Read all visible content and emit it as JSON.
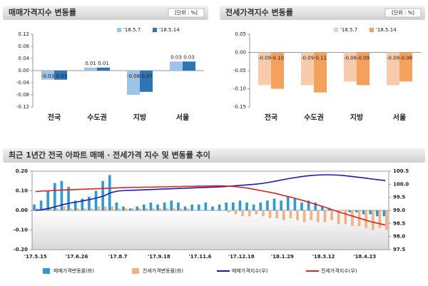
{
  "chart_data": [
    {
      "type": "bar",
      "title": "매매가격지수 변동률",
      "unit": "[단위 : %]",
      "categories": [
        "전국",
        "수도권",
        "지방",
        "서울"
      ],
      "series": [
        {
          "name": "'18.5.7",
          "color": "#9dc3e6",
          "values": [
            -0.03,
            0.01,
            -0.08,
            0.03
          ],
          "value_labels": [
            "-0.03",
            "0.01",
            "-0.08",
            "0.03"
          ]
        },
        {
          "name": "'18.5.14",
          "color": "#2e75b6",
          "values": [
            -0.03,
            0.01,
            -0.07,
            0.03
          ],
          "value_labels": [
            "-0.03",
            "0.01",
            "-0.07",
            "0.03"
          ]
        }
      ],
      "ylim": [
        -0.12,
        0.12
      ],
      "yticks": [
        0.12,
        0.08,
        0.04,
        {
          "value": 0,
          "label": "0.00"
        },
        -0.04,
        -0.08,
        -0.12
      ]
    },
    {
      "type": "bar",
      "title": "전세가격지수 변동률",
      "unit": "[단위 : %]",
      "categories": [
        "전국",
        "수도권",
        "지방",
        "서울"
      ],
      "series": [
        {
          "name": "'18.5.7",
          "color": "#f8cbad",
          "values": [
            -0.09,
            -0.09,
            -0.08,
            -0.09
          ],
          "value_labels": [
            "-0.09",
            "-0.09",
            "-0.08",
            "-0.09"
          ]
        },
        {
          "name": "'18.5.14",
          "color": "#f4a15d",
          "values": [
            -0.1,
            -0.11,
            -0.09,
            -0.08
          ],
          "value_labels": [
            "-0.10",
            "-0.11",
            "-0.09",
            "-0.08"
          ]
        }
      ],
      "ylim": [
        -0.15,
        0.05
      ],
      "yticks": [
        0.05,
        {
          "value": 0,
          "label": "0.00"
        },
        -0.05,
        {
          "value": -0.1,
          "label": "-0.10"
        },
        -0.15
      ]
    },
    {
      "type": "combo",
      "title": "최근 1년간 전국 아파트 매매 · 전세가격 지수 및 변동률 추이",
      "categories": [
        "'17.5.15",
        null,
        null,
        null,
        null,
        null,
        "'17.6.26",
        null,
        null,
        null,
        null,
        null,
        "'17.8.7",
        null,
        null,
        null,
        null,
        null,
        "'17.9.18",
        null,
        null,
        null,
        null,
        null,
        "'17.11.6",
        null,
        null,
        null,
        null,
        null,
        "'17.12.18",
        null,
        null,
        null,
        null,
        null,
        "'18.1.29",
        null,
        null,
        null,
        null,
        null,
        "'18.3.12",
        null,
        null,
        null,
        null,
        null,
        "'18.4.23",
        null,
        null,
        null
      ],
      "series": [
        {
          "name": "매매가격변동률(좌)",
          "kind": "bar",
          "color": "#2e9bd6",
          "values": [
            0.03,
            0.05,
            0.1,
            0.14,
            0.15,
            0.12,
            0.05,
            0.06,
            0.07,
            0.1,
            0.15,
            0.18,
            0.04,
            0.02,
            0.01,
            0.02,
            0.03,
            0.04,
            0.03,
            0.04,
            0.05,
            0.04,
            0.02,
            0.03,
            0.03,
            0.04,
            0.02,
            0.03,
            0.04,
            0.04,
            0.05,
            0.04,
            0.03,
            0.04,
            0.05,
            0.06,
            0.05,
            0.07,
            0.06,
            0.04,
            0.05,
            0.04,
            0.02,
            0.01,
            0.0,
            0.0,
            -0.01,
            -0.01,
            -0.02,
            -0.02,
            -0.03,
            -0.03
          ]
        },
        {
          "name": "전세가격변동률(좌)",
          "kind": "bar",
          "color": "#f4b183",
          "values": [
            0.01,
            0.01,
            0.01,
            0.01,
            0.02,
            0.01,
            0.01,
            0.01,
            0.01,
            0.02,
            0.02,
            0.02,
            0.01,
            0.01,
            0.01,
            0.01,
            0.01,
            0.01,
            0.01,
            0.01,
            0.01,
            0.01,
            0.01,
            0.0,
            0.0,
            0.0,
            0.0,
            0.0,
            -0.01,
            -0.02,
            -0.03,
            -0.03,
            -0.02,
            -0.03,
            -0.04,
            -0.04,
            -0.05,
            -0.04,
            -0.05,
            -0.06,
            -0.05,
            -0.06,
            -0.06,
            -0.05,
            -0.07,
            -0.07,
            -0.08,
            -0.08,
            -0.09,
            -0.1,
            -0.09,
            -0.1
          ]
        },
        {
          "name": "매매가격지수(우)",
          "kind": "line",
          "axis": "y2",
          "color": "#1a1ab8",
          "values": [
            99.0,
            99.03,
            99.08,
            99.15,
            99.22,
            99.28,
            99.32,
            99.37,
            99.42,
            99.48,
            99.56,
            99.68,
            99.74,
            99.76,
            99.77,
            99.78,
            99.79,
            99.8,
            99.81,
            99.82,
            99.83,
            99.84,
            99.85,
            99.86,
            99.87,
            99.88,
            99.89,
            99.9,
            99.92,
            99.94,
            99.96,
            99.98,
            100.0,
            100.03,
            100.07,
            100.12,
            100.17,
            100.22,
            100.26,
            100.3,
            100.33,
            100.35,
            100.36,
            100.36,
            100.35,
            100.33,
            100.3,
            100.27,
            100.24,
            100.2,
            100.17,
            100.14
          ]
        },
        {
          "name": "전세가격지수(우)",
          "kind": "line",
          "axis": "y2",
          "color": "#e0201c",
          "values": [
            99.72,
            99.74,
            99.75,
            99.77,
            99.78,
            99.79,
            99.8,
            99.81,
            99.82,
            99.83,
            99.84,
            99.85,
            99.86,
            99.87,
            99.88,
            99.88,
            99.89,
            99.89,
            99.9,
            99.9,
            99.91,
            99.91,
            99.92,
            99.92,
            99.93,
            99.93,
            99.94,
            99.94,
            99.93,
            99.91,
            99.88,
            99.85,
            99.8,
            99.75,
            99.7,
            99.65,
            99.58,
            99.52,
            99.45,
            99.38,
            99.3,
            99.22,
            99.14,
            99.05,
            98.96,
            98.88,
            98.8,
            98.72,
            98.64,
            98.56,
            98.5,
            98.44
          ]
        }
      ],
      "ylim": [
        -0.2,
        0.2
      ],
      "yticks": [
        {
          "value": 0.2,
          "label": "0.20"
        },
        {
          "value": 0.1,
          "label": "0.10"
        },
        {
          "value": 0,
          "label": "0.00"
        },
        {
          "value": -0.1,
          "label": "-0.10"
        },
        {
          "value": -0.2,
          "label": "-0.20"
        }
      ],
      "y2lim": [
        97.5,
        100.5
      ],
      "y2ticks": [
        100.5,
        {
          "value": 100,
          "label": "100.0"
        },
        99.5,
        {
          "value": 99,
          "label": "99.0"
        },
        98.5,
        {
          "value": 98,
          "label": "98.0"
        },
        97.5
      ]
    }
  ]
}
